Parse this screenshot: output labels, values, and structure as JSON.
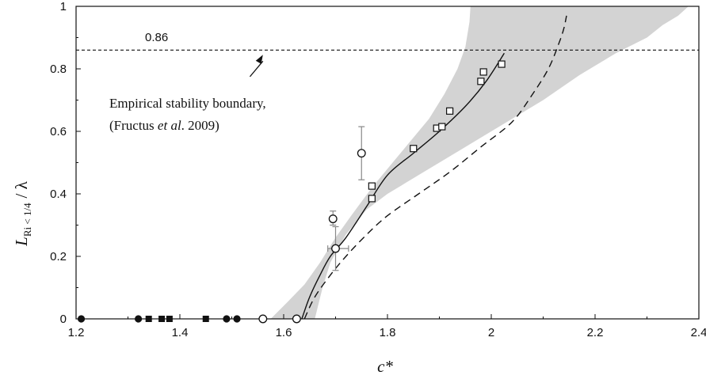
{
  "chart_data": {
    "type": "scatter",
    "xlabel": "c*",
    "ylabel": {
      "main": "L",
      "sub": "Ri < 1/4",
      "tail": "/ λ"
    },
    "xlim": [
      1.2,
      2.4
    ],
    "ylim": [
      0,
      1
    ],
    "x_ticks": [
      "1.2",
      "1.4",
      "1.6",
      "1.8",
      "2",
      "2.2",
      "2.4"
    ],
    "y_ticks": [
      "0",
      "0.2",
      "0.4",
      "0.6",
      "0.8",
      "1"
    ],
    "reference_line": {
      "y": 0.86,
      "label": "0.86",
      "style": "dashed"
    },
    "annotation": {
      "line1": "Empirical stability boundary,",
      "line2_prefix": "(Fructus ",
      "line2_italic": "et al",
      "line2_suffix": ". 2009)",
      "arrow_from": [
        1.535,
        0.775
      ],
      "arrow_to": [
        1.56,
        0.86
      ]
    },
    "shaded_band": {
      "color": "#d3d3d3",
      "left": [
        [
          1.575,
          0
        ],
        [
          1.605,
          0.05
        ],
        [
          1.64,
          0.11
        ],
        [
          1.67,
          0.18
        ],
        [
          1.7,
          0.26
        ],
        [
          1.73,
          0.33
        ],
        [
          1.77,
          0.42
        ],
        [
          1.8,
          0.48
        ],
        [
          1.84,
          0.56
        ],
        [
          1.88,
          0.64
        ],
        [
          1.91,
          0.72
        ],
        [
          1.935,
          0.8
        ],
        [
          1.95,
          0.87
        ],
        [
          1.958,
          0.95
        ],
        [
          1.96,
          1
        ]
      ],
      "right": [
        [
          2.38,
          1
        ],
        [
          2.36,
          0.97
        ],
        [
          2.33,
          0.94
        ],
        [
          2.3,
          0.9
        ],
        [
          2.24,
          0.85
        ],
        [
          2.17,
          0.78
        ],
        [
          2.1,
          0.7
        ],
        [
          2.02,
          0.62
        ],
        [
          1.94,
          0.54
        ],
        [
          1.86,
          0.46
        ],
        [
          1.8,
          0.4
        ],
        [
          1.76,
          0.35
        ],
        [
          1.72,
          0.27
        ],
        [
          1.69,
          0.18
        ],
        [
          1.675,
          0.1
        ],
        [
          1.66,
          0
        ]
      ]
    },
    "series": [
      {
        "style": "solid",
        "x": [
          1.635,
          1.65,
          1.67,
          1.69,
          1.72,
          1.76,
          1.8,
          1.85,
          1.9,
          1.95,
          1.99,
          2.025
        ],
        "y": [
          0,
          0.07,
          0.14,
          0.2,
          0.26,
          0.36,
          0.46,
          0.53,
          0.6,
          0.68,
          0.76,
          0.85
        ]
      },
      {
        "style": "dashed",
        "x": [
          1.64,
          1.66,
          1.69,
          1.72,
          1.76,
          1.8,
          1.86,
          1.92,
          1.98,
          2.04,
          2.08,
          2.11,
          2.13,
          2.14,
          2.145
        ],
        "y": [
          0,
          0.07,
          0.14,
          0.2,
          0.27,
          0.33,
          0.4,
          0.47,
          0.55,
          0.63,
          0.72,
          0.8,
          0.88,
          0.93,
          0.97
        ]
      },
      {
        "marker": "open-square",
        "x": [
          1.77,
          1.77,
          1.85,
          1.895,
          1.905,
          1.92,
          1.98,
          1.985,
          2.02
        ],
        "y": [
          0.385,
          0.425,
          0.545,
          0.61,
          0.615,
          0.665,
          0.76,
          0.79,
          0.815
        ]
      },
      {
        "marker": "open-circle",
        "x": [
          1.695,
          1.75,
          1.56,
          1.625
        ],
        "y": [
          0.32,
          0.53,
          0,
          0
        ]
      },
      {
        "marker": "open-circle-errorbar",
        "x": 1.7,
        "y": 0.225,
        "xerr": [
          1.685,
          1.725
        ],
        "yerr": [
          0.155,
          0.295
        ]
      },
      {
        "marker": "filled-circle",
        "x": [
          1.21,
          1.32,
          1.49,
          1.51
        ],
        "y": [
          0,
          0,
          0,
          0
        ]
      },
      {
        "marker": "filled-square",
        "x": [
          1.34,
          1.365,
          1.38,
          1.45
        ],
        "y": [
          0,
          0,
          0,
          0
        ]
      }
    ],
    "error_bars": [
      {
        "x": 1.695,
        "y_low": 0.3,
        "y_high": 0.345
      },
      {
        "x": 1.75,
        "y_low": 0.445,
        "y_high": 0.615
      }
    ]
  }
}
